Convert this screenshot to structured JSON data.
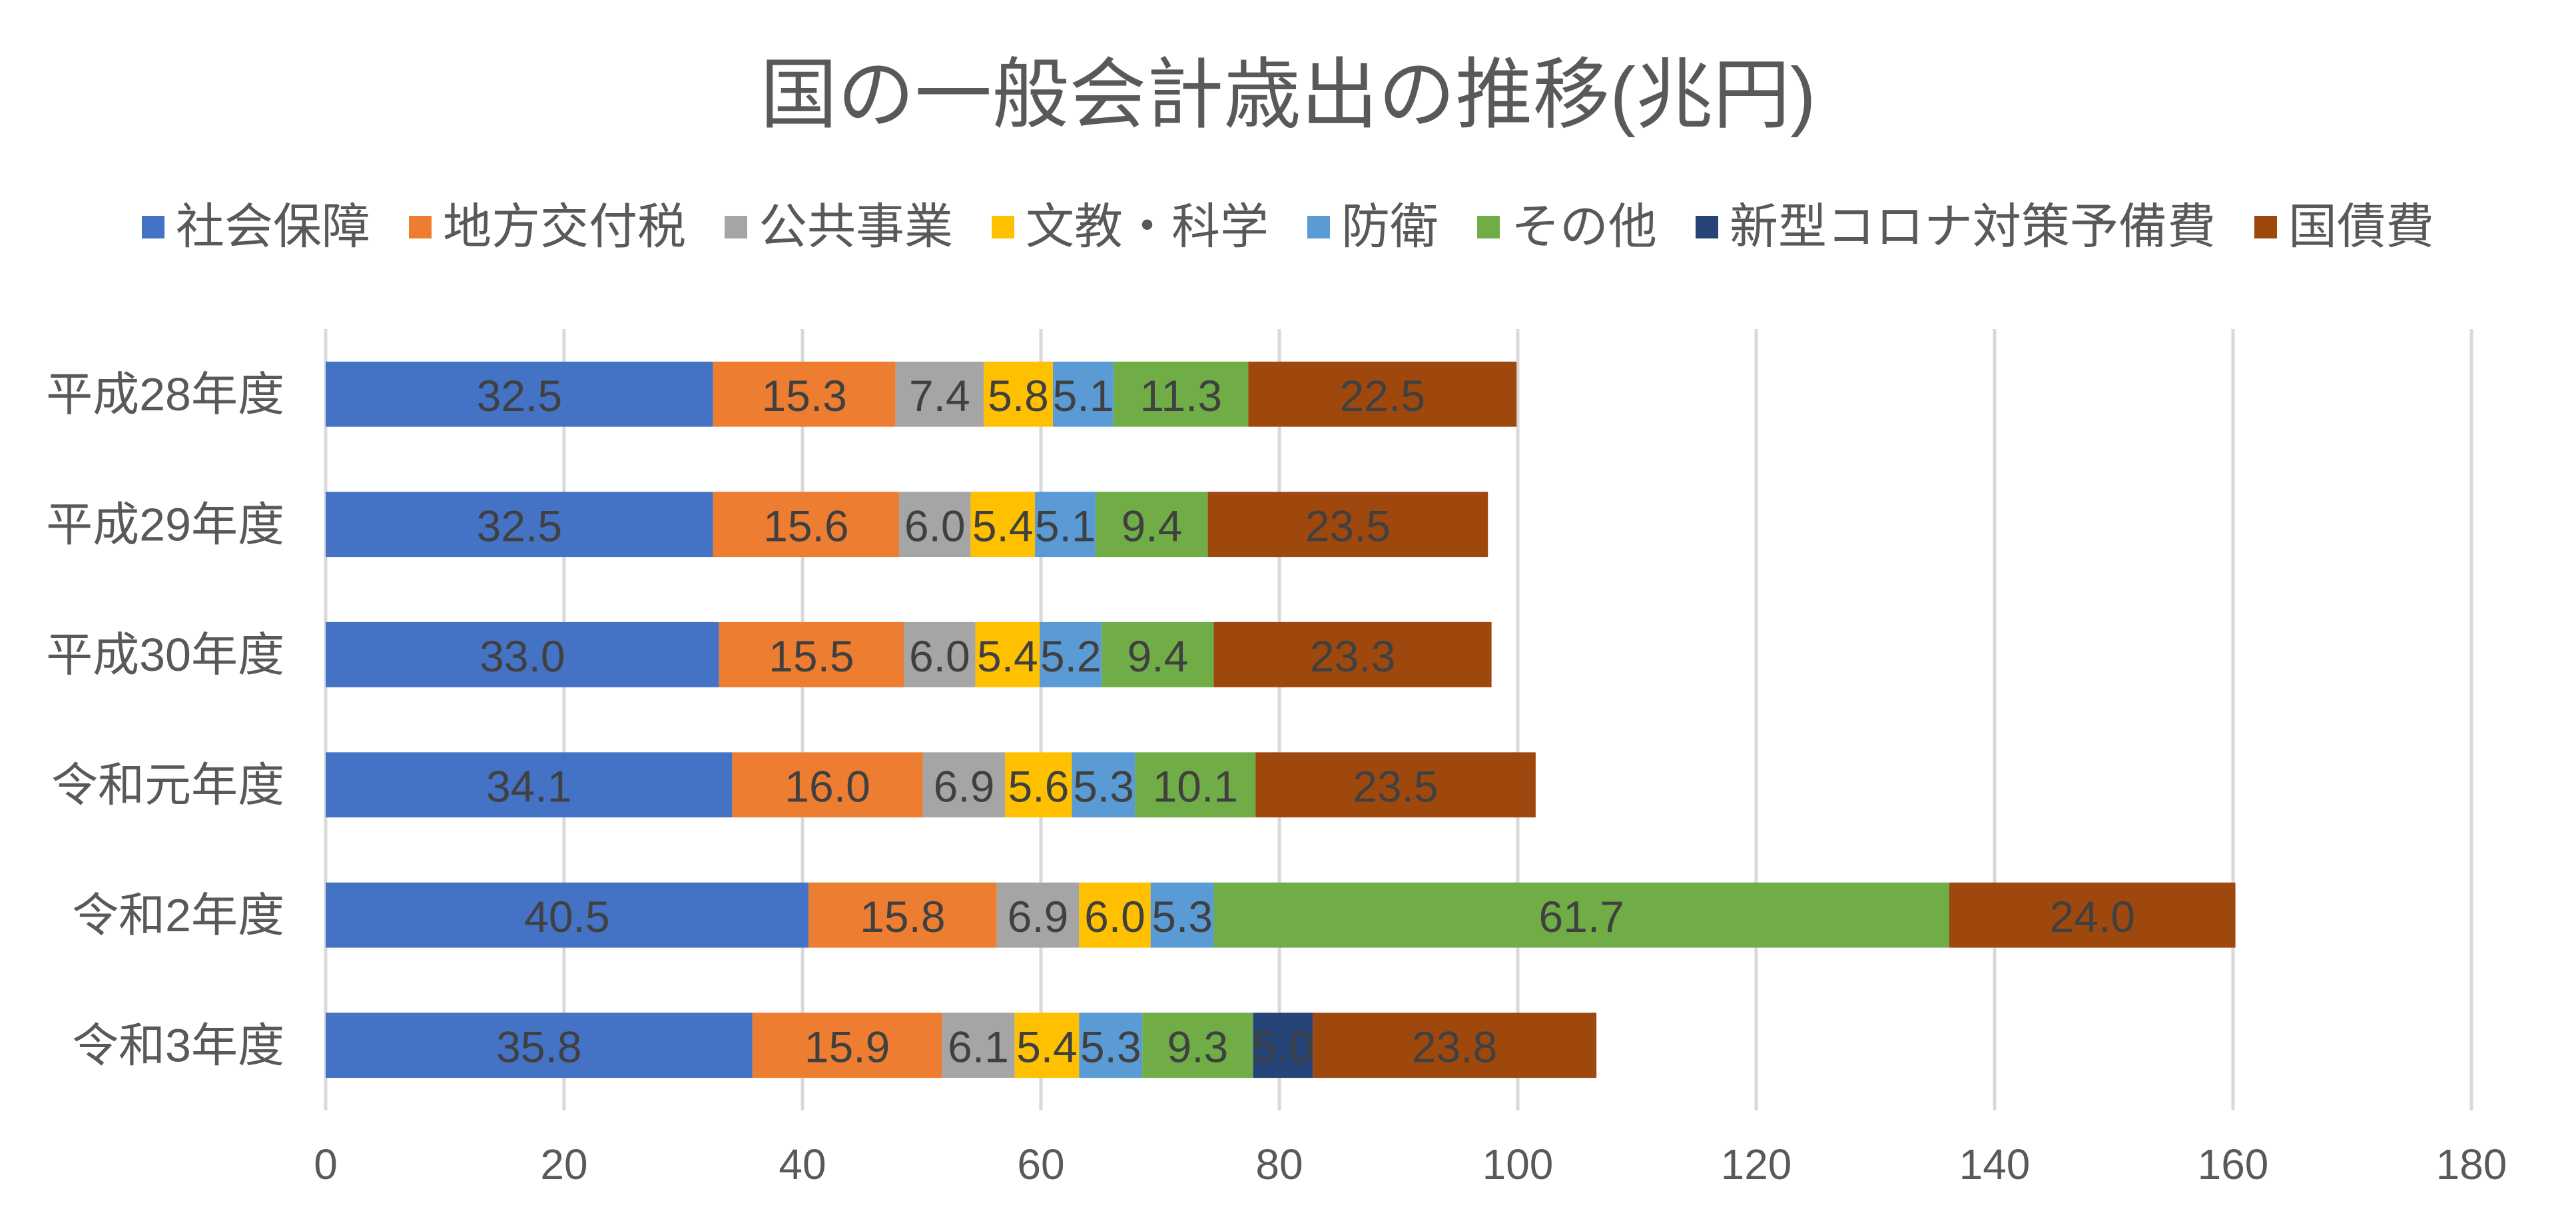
{
  "chart_data": {
    "type": "bar",
    "orientation": "horizontal",
    "stacked": true,
    "title": "国の一般会計歳出の推移(兆円)",
    "xlabel": "",
    "ylabel": "",
    "xlim": [
      0,
      180
    ],
    "x_ticks": [
      0,
      20,
      40,
      60,
      80,
      100,
      120,
      140,
      160,
      180
    ],
    "grid": "vertical",
    "legend_position": "top",
    "categories": [
      "平成28年度",
      "平成29年度",
      "平成30年度",
      "令和元年度",
      "令和2年度",
      "令和3年度"
    ],
    "series": [
      {
        "name": "社会保障",
        "color": "#4472C4",
        "label_color": "#404040",
        "values": [
          32.5,
          32.5,
          33.0,
          34.1,
          40.5,
          35.8
        ]
      },
      {
        "name": "地方交付税",
        "color": "#ED7D31",
        "label_color": "#404040",
        "values": [
          15.3,
          15.6,
          15.5,
          16.0,
          15.8,
          15.9
        ]
      },
      {
        "name": "公共事業",
        "color": "#A5A5A5",
        "label_color": "#404040",
        "values": [
          7.4,
          6.0,
          6.0,
          6.9,
          6.9,
          6.1
        ]
      },
      {
        "name": "文教・科学",
        "color": "#FFC000",
        "label_color": "#404040",
        "values": [
          5.8,
          5.4,
          5.4,
          5.6,
          6.0,
          5.4
        ]
      },
      {
        "name": "防衛",
        "color": "#5B9BD5",
        "label_color": "#404040",
        "values": [
          5.1,
          5.1,
          5.2,
          5.3,
          5.3,
          5.3
        ]
      },
      {
        "name": "その他",
        "color": "#70AD47",
        "label_color": "#404040",
        "values": [
          11.3,
          9.4,
          9.4,
          10.1,
          61.7,
          9.3
        ]
      },
      {
        "name": "新型コロナ対策予備費",
        "color": "#264478",
        "label_color": "#FFFFFF",
        "values": [
          null,
          null,
          null,
          null,
          null,
          5.0
        ]
      },
      {
        "name": "国債費",
        "color": "#9E480E",
        "label_color": "#404040",
        "values": [
          22.5,
          23.5,
          23.3,
          23.5,
          24.0,
          23.8
        ]
      }
    ]
  },
  "colors": {
    "text": "#595959",
    "gridline": "#D9D9D9"
  }
}
